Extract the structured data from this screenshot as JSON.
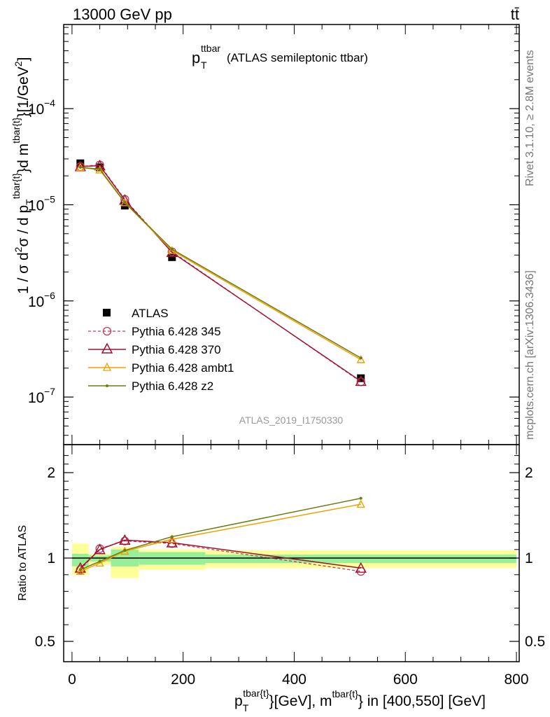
{
  "header": {
    "energy_label": "13000 GeV pp",
    "process_label": "tt̄"
  },
  "side_labels": {
    "rivet": "Rivet 3.1.10, ≥ 2.8M events",
    "mcplots": "mcplots.cern.ch [arXiv:1306.3436]"
  },
  "chart_data": [
    {
      "type": "scatter",
      "title": "(ATLAS semileptonic ttbar)",
      "title_main": "p",
      "title_sub": "T",
      "title_sup": "ttbar",
      "watermark": "ATLAS_2019_I1750330",
      "ylabel": "1 / σ d²σ / d p_T^{tbar{t}}d m^{tbar{t}}[1/GeV²]",
      "yscale": "log",
      "ylim": [
        3.2e-08,
        0.00075
      ],
      "xlim": [
        -15,
        805
      ],
      "y_ticks": [
        {
          "value": 0.0001,
          "base": "10",
          "exp": "−4"
        },
        {
          "value": 1e-05,
          "base": "10",
          "exp": "−5"
        },
        {
          "value": 1e-06,
          "base": "10",
          "exp": "−6"
        },
        {
          "value": 1e-07,
          "base": "10",
          "exp": "−7"
        }
      ],
      "legend_position": "middle-left",
      "series": [
        {
          "name": "ATLAS",
          "color": "#000000",
          "marker": "square",
          "line": "none",
          "x": [
            15,
            50,
            95,
            180,
            520
          ],
          "y": [
            2.7e-05,
            2.45e-05,
            9.8e-06,
            2.85e-06,
            1.57e-07
          ]
        },
        {
          "name": "Pythia 6.428 345",
          "color": "#c0395a",
          "marker": "circle",
          "line": "dashed",
          "x": [
            15,
            50,
            95,
            180,
            520
          ],
          "y": [
            2.5e-05,
            2.6e-05,
            1.14e-05,
            3.25e-06,
            1.44e-07
          ]
        },
        {
          "name": "Pythia 6.428 370",
          "color": "#a0102e",
          "marker": "triangle",
          "line": "solid",
          "x": [
            15,
            50,
            95,
            180,
            520
          ],
          "y": [
            2.5e-05,
            2.55e-05,
            1.12e-05,
            3.2e-06,
            1.46e-07
          ]
        },
        {
          "name": "Pythia 6.428 ambt1",
          "color": "#f0a000",
          "marker": "triangle",
          "line": "solid",
          "x": [
            15,
            50,
            95,
            180,
            520
          ],
          "y": [
            2.45e-05,
            2.3e-05,
            1.05e-05,
            3.35e-06,
            2.45e-07
          ]
        },
        {
          "name": "Pythia 6.428 z2",
          "color": "#6b7d10",
          "marker": "dot",
          "line": "solid",
          "x": [
            15,
            50,
            95,
            180,
            520
          ],
          "y": [
            2.45e-05,
            2.35e-05,
            1.06e-05,
            3.45e-06,
            2.55e-07
          ]
        }
      ]
    },
    {
      "type": "line",
      "ylabel": "Ratio to ATLAS",
      "xlabel": "p_T^{tbar{t}}[GeV], m^{tbar{t}} in [400,550] [GeV]",
      "ylim": [
        0.38,
        2.3
      ],
      "xlim": [
        -15,
        805
      ],
      "x_ticks": [
        0,
        200,
        400,
        600,
        800
      ],
      "x_tick_labels": [
        "0",
        "200",
        "400",
        "600",
        "800"
      ],
      "y_ticks": [
        0.5,
        1,
        2
      ],
      "y_tick_labels": [
        "0.5",
        "1",
        "2"
      ],
      "reference": 1,
      "bands": [
        {
          "x0": 0,
          "x1": 30,
          "stat": [
            0.95,
            1.05
          ],
          "total": [
            0.9,
            1.17
          ]
        },
        {
          "x0": 30,
          "x1": 70,
          "stat": [
            0.98,
            1.03
          ],
          "total": [
            0.96,
            1.05
          ]
        },
        {
          "x0": 70,
          "x1": 120,
          "stat": [
            0.95,
            1.1
          ],
          "total": [
            0.88,
            1.13
          ]
        },
        {
          "x0": 120,
          "x1": 240,
          "stat": [
            0.96,
            1.07
          ],
          "total": [
            0.93,
            1.1
          ]
        },
        {
          "x0": 240,
          "x1": 800,
          "stat": [
            0.97,
            1.04
          ],
          "total": [
            0.94,
            1.09
          ]
        }
      ],
      "series": [
        {
          "name": "Pythia 6.428 345",
          "color": "#c0395a",
          "marker": "circle",
          "line": "dashed",
          "x": [
            15,
            50,
            95,
            180,
            520
          ],
          "y": [
            0.93,
            1.11,
            1.2,
            1.17,
            0.92
          ]
        },
        {
          "name": "Pythia 6.428 370",
          "color": "#a0102e",
          "marker": "triangle",
          "line": "solid",
          "x": [
            15,
            50,
            95,
            180,
            520
          ],
          "y": [
            0.94,
            1.1,
            1.21,
            1.18,
            0.94
          ]
        },
        {
          "name": "Pythia 6.428 ambt1",
          "color": "#f0a000",
          "marker": "triangle",
          "line": "solid",
          "x": [
            15,
            50,
            95,
            180,
            520
          ],
          "y": [
            0.92,
            0.97,
            1.08,
            1.22,
            1.63
          ]
        },
        {
          "name": "Pythia 6.428 z2",
          "color": "#6b7d10",
          "marker": "dot",
          "line": "solid",
          "x": [
            15,
            50,
            95,
            180,
            520
          ],
          "y": [
            0.93,
            0.98,
            1.09,
            1.25,
            1.7
          ]
        }
      ]
    }
  ]
}
